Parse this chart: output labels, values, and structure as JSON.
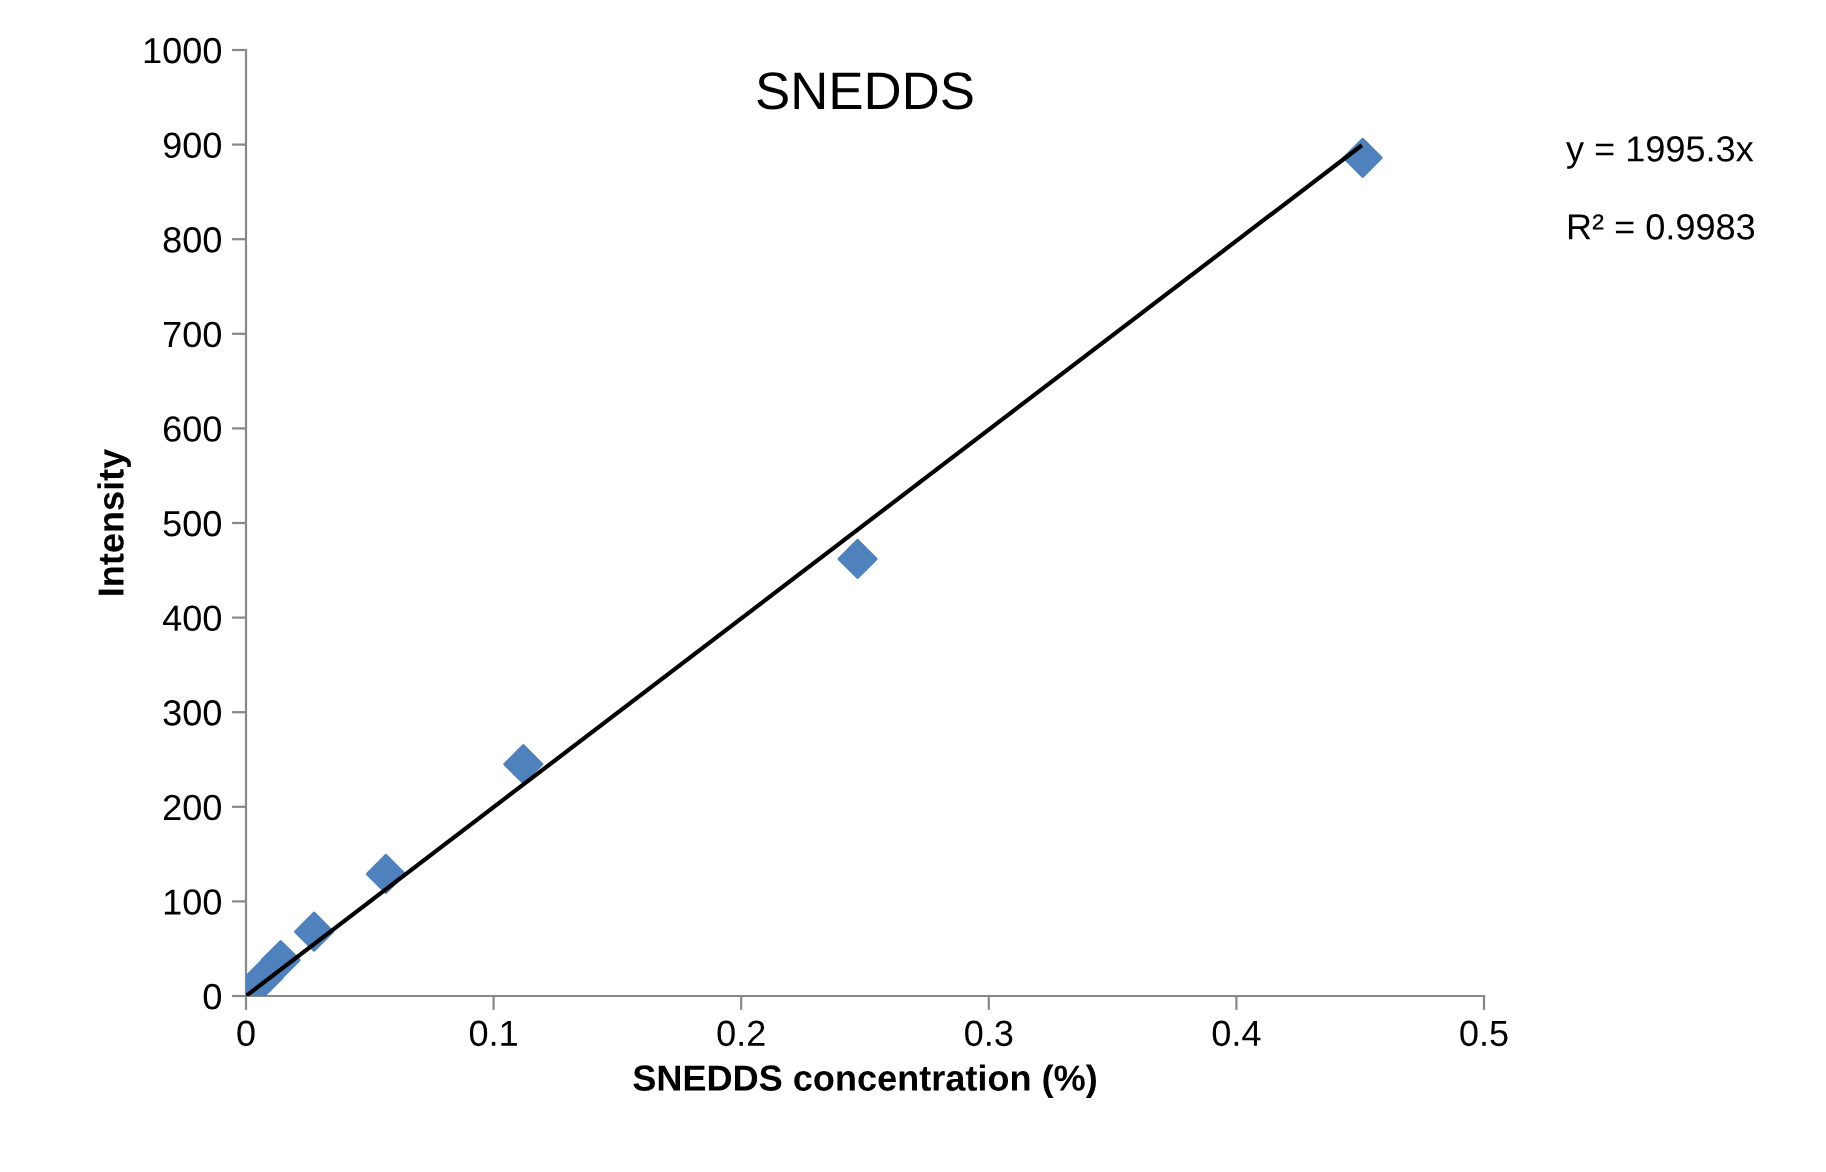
{
  "chart_data": {
    "type": "scatter",
    "title": "SNEDDS",
    "xlabel": "SNEDDS concentration (%)",
    "ylabel": "Intensity",
    "series": [
      {
        "color": "#4f81bd",
        "marker": "diamond",
        "x": [
          0,
          0.007,
          0.014,
          0.0275,
          0.0565,
          0.112,
          0.247,
          0.451
        ],
        "values": [
          2,
          19,
          38,
          68,
          129,
          245,
          462,
          886
        ]
      },
      {
        "type": "line",
        "color": "#000000",
        "marker": "none",
        "line_style": "solid",
        "x": [
          0,
          0.45
        ],
        "values": [
          0,
          898
        ]
      }
    ],
    "annotations": [
      "y = 1995.3x",
      "R² = 0.9983"
    ],
    "xlim": [
      0,
      0.5
    ],
    "xticks": [
      0,
      0.1,
      0.2,
      0.3,
      0.4,
      0.5
    ],
    "ylim": [
      0,
      1000
    ],
    "yticks": [
      0,
      100,
      200,
      300,
      400,
      500,
      600,
      700,
      800,
      900,
      1000
    ],
    "grid": false,
    "legend": false
  }
}
